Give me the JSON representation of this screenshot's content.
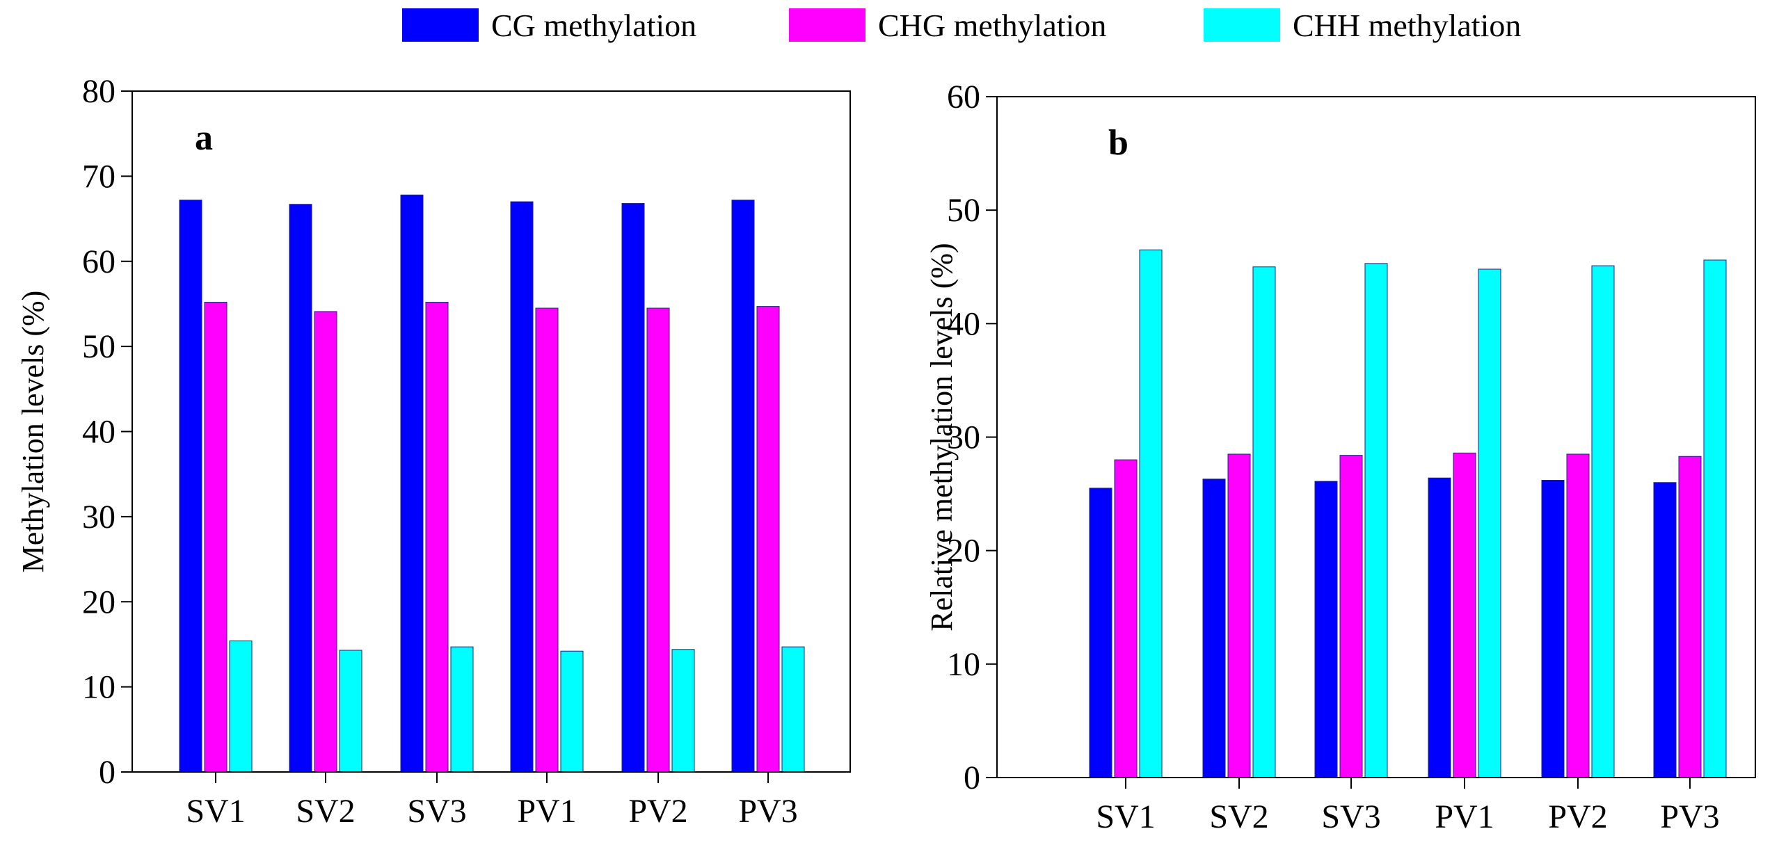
{
  "chart_data": [
    {
      "type": "bar",
      "panel": "a",
      "categories": [
        "SV1",
        "SV2",
        "SV3",
        "PV1",
        "PV2",
        "PV3"
      ],
      "series": [
        {
          "name": "CG methylation",
          "color": "#0000ff",
          "values": [
            67.2,
            66.7,
            67.8,
            67.0,
            66.8,
            67.2
          ]
        },
        {
          "name": "CHG methylation",
          "color": "#ff00ff",
          "values": [
            55.2,
            54.1,
            55.2,
            54.5,
            54.5,
            54.7
          ]
        },
        {
          "name": "CHH methylation",
          "color": "#00ffff",
          "values": [
            15.4,
            14.3,
            14.7,
            14.2,
            14.4,
            14.7
          ]
        }
      ],
      "ylabel": "Methylation levels (%)",
      "xlabel": "",
      "ylim": [
        0,
        80
      ],
      "yticks": [
        "0",
        "10",
        "20",
        "30",
        "40",
        "50",
        "60",
        "70",
        "80"
      ],
      "grid": false
    },
    {
      "type": "bar",
      "panel": "b",
      "categories": [
        "SV1",
        "SV2",
        "SV3",
        "PV1",
        "PV2",
        "PV3"
      ],
      "series": [
        {
          "name": "CG methylation",
          "color": "#0000ff",
          "values": [
            25.5,
            26.3,
            26.1,
            26.4,
            26.2,
            26.0
          ]
        },
        {
          "name": "CHG methylation",
          "color": "#ff00ff",
          "values": [
            28.0,
            28.5,
            28.4,
            28.6,
            28.5,
            28.3
          ]
        },
        {
          "name": "CHH methylation",
          "color": "#00ffff",
          "values": [
            46.5,
            45.0,
            45.3,
            44.8,
            45.1,
            45.6
          ]
        }
      ],
      "ylabel": "Relative methylation levels (%)",
      "xlabel": "",
      "ylim": [
        0,
        60
      ],
      "yticks": [
        "0",
        "10",
        "20",
        "30",
        "40",
        "50",
        "60"
      ],
      "grid": false
    }
  ],
  "legend": {
    "placement": "top-center",
    "items": [
      {
        "label": "CG methylation",
        "color": "#0000ff"
      },
      {
        "label": "CHG methylation",
        "color": "#ff00ff"
      },
      {
        "label": "CHH methylation",
        "color": "#00ffff"
      }
    ]
  }
}
